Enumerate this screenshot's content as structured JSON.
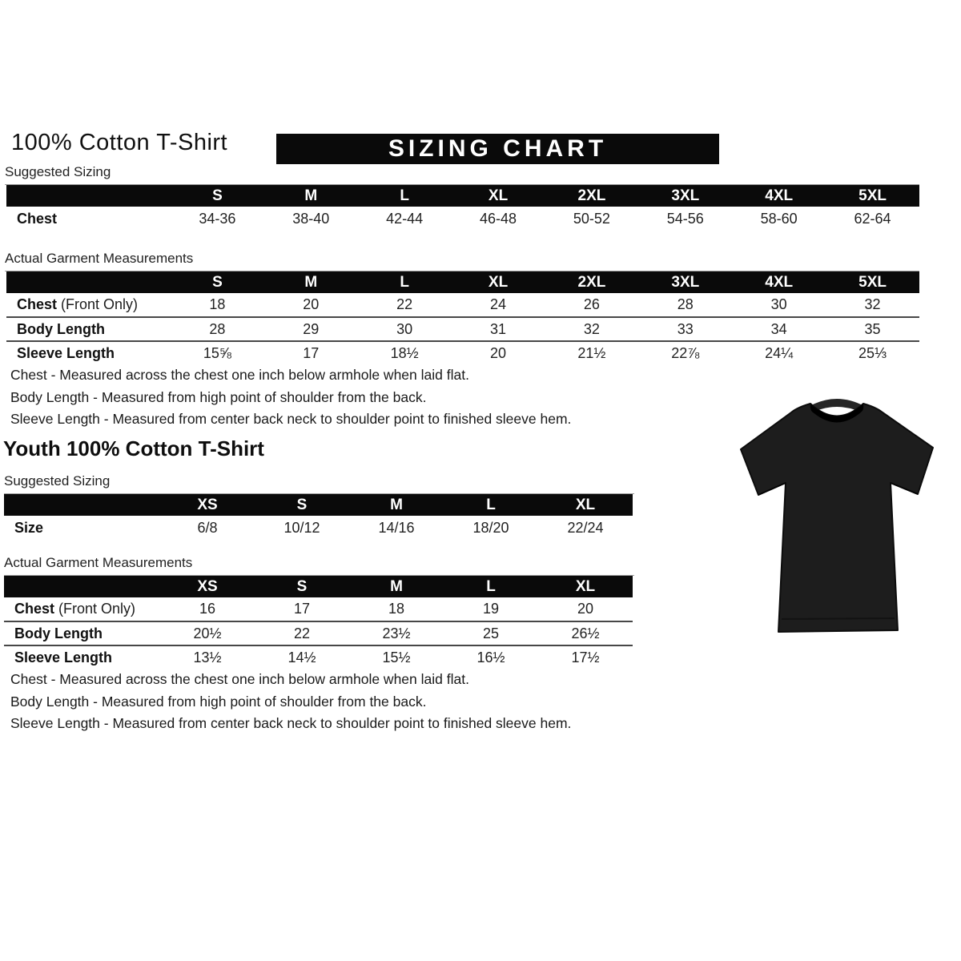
{
  "adult": {
    "title": "100% Cotton T-Shirt",
    "banner": "SIZING CHART",
    "suggested": {
      "heading": "Suggested Sizing",
      "columns": [
        "S",
        "M",
        "L",
        "XL",
        "2XL",
        "3XL",
        "4XL",
        "5XL"
      ],
      "rows": [
        {
          "label": "Chest",
          "suffix": "",
          "values": [
            "34-36",
            "38-40",
            "42-44",
            "46-48",
            "50-52",
            "54-56",
            "58-60",
            "62-64"
          ]
        }
      ]
    },
    "actual": {
      "heading": "Actual Garment Measurements",
      "columns": [
        "S",
        "M",
        "L",
        "XL",
        "2XL",
        "3XL",
        "4XL",
        "5XL"
      ],
      "rows": [
        {
          "label": "Chest",
          "suffix": " (Front Only)",
          "values": [
            "18",
            "20",
            "22",
            "24",
            "26",
            "28",
            "30",
            "32"
          ]
        },
        {
          "label": "Body Length",
          "suffix": "",
          "values": [
            "28",
            "29",
            "30",
            "31",
            "32",
            "33",
            "34",
            "35"
          ]
        },
        {
          "label": "Sleeve Length",
          "suffix": "",
          "values": [
            "15⅝",
            "17",
            "18½",
            "20",
            "21½",
            "22⅞",
            "24¼",
            "25⅓"
          ]
        }
      ]
    },
    "notes": [
      "Chest - Measured across the chest one inch below armhole when laid flat.",
      "Body Length - Measured from high point of shoulder from the back.",
      "Sleeve Length - Measured from center back neck to shoulder point to finished sleeve hem."
    ]
  },
  "youth": {
    "title": "Youth 100% Cotton T-Shirt",
    "suggested": {
      "heading": "Suggested Sizing",
      "columns": [
        "XS",
        "S",
        "M",
        "L",
        "XL"
      ],
      "rows": [
        {
          "label": "Size",
          "suffix": "",
          "values": [
            "6/8",
            "10/12",
            "14/16",
            "18/20",
            "22/24"
          ]
        }
      ]
    },
    "actual": {
      "heading": "Actual Garment Measurements",
      "columns": [
        "XS",
        "S",
        "M",
        "L",
        "XL"
      ],
      "rows": [
        {
          "label": "Chest",
          "suffix": " (Front Only)",
          "values": [
            "16",
            "17",
            "18",
            "19",
            "20"
          ]
        },
        {
          "label": "Body Length",
          "suffix": "",
          "values": [
            "20½",
            "22",
            "23½",
            "25",
            "26½"
          ]
        },
        {
          "label": "Sleeve Length",
          "suffix": "",
          "values": [
            "13½",
            "14½",
            "15½",
            "16½",
            "17½"
          ]
        }
      ]
    },
    "notes": [
      "Chest - Measured across the chest one inch below armhole when laid flat.",
      "Body Length - Measured from high point of shoulder from the back.",
      "Sleeve Length - Measured from center back neck to shoulder point to finished sleeve hem."
    ]
  },
  "tshirt": {
    "description": "black crew-neck t-shirt product photo",
    "color": "#1d1d1d",
    "collar_color": "#262626"
  }
}
